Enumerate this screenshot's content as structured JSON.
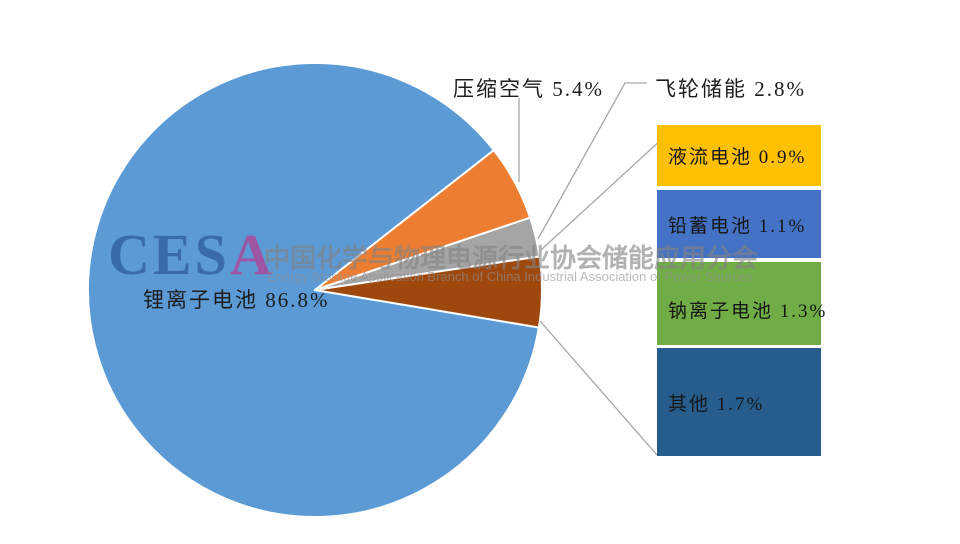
{
  "chart_data": {
    "type": "pie",
    "title": "",
    "legend_position": "callout-labels-right",
    "first_slice_start_deg": 99.5,
    "grid": false,
    "categories": [
      "锂离子电池",
      "压缩空气",
      "飞轮储能",
      "液流电池",
      "铅蓄电池",
      "钠离子电池",
      "其他"
    ],
    "values": [
      86.8,
      5.4,
      2.8,
      0.9,
      1.1,
      1.3,
      1.7
    ],
    "slices": [
      {
        "label": "锂离子电池",
        "value": 86.8,
        "display": "锂离子电池 86.8%",
        "pie_color": "#5B9AD5",
        "callout_color": null
      },
      {
        "label": "压缩空气",
        "value": 5.4,
        "display": "压缩空气 5.4%",
        "pie_color": "#ED7D31",
        "callout_color": null
      },
      {
        "label": "飞轮储能",
        "value": 2.8,
        "display": "飞轮储能 2.8%",
        "pie_color": "#A5A5A5",
        "callout_color": null
      },
      {
        "label": "液流电池",
        "value": 0.9,
        "display": "液流电池 0.9%",
        "pie_color": "#9E480E",
        "callout_color": "#FFC000"
      },
      {
        "label": "铅蓄电池",
        "value": 1.1,
        "display": "铅蓄电池 1.1%",
        "pie_color": "#9E480E",
        "callout_color": "#4472C4"
      },
      {
        "label": "钠离子电池",
        "value": 1.3,
        "display": "钠离子电池 1.3%",
        "pie_color": "#9E480E",
        "callout_color": "#70AD47"
      },
      {
        "label": "其他",
        "value": 1.7,
        "display": "其他 1.7%",
        "pie_color": "#9E480E",
        "callout_color": "#275D8D"
      }
    ],
    "colors_note": {
      "slice_separator": "#FFFFFF",
      "leader_line": "#A6A6A6",
      "label_text": "#1D1D1D"
    }
  },
  "watermark": {
    "logo_ces": "CES",
    "logo_a": "A",
    "title_zh": "中国化学与物理电源行业协会储能应用分会",
    "subtitle_en": "Energy Storage Application Branch of China Industrial Association of Power Sources"
  }
}
